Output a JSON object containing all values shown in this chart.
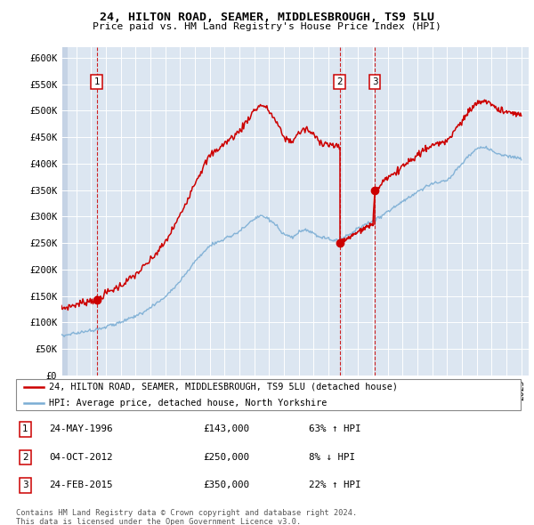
{
  "title1": "24, HILTON ROAD, SEAMER, MIDDLESBROUGH, TS9 5LU",
  "title2": "Price paid vs. HM Land Registry's House Price Index (HPI)",
  "ylim": [
    0,
    620000
  ],
  "yticks": [
    0,
    50000,
    100000,
    150000,
    200000,
    250000,
    300000,
    350000,
    400000,
    450000,
    500000,
    550000,
    600000
  ],
  "ytick_labels": [
    "£0",
    "£50K",
    "£100K",
    "£150K",
    "£200K",
    "£250K",
    "£300K",
    "£350K",
    "£400K",
    "£450K",
    "£500K",
    "£550K",
    "£600K"
  ],
  "xlim_start": 1994.0,
  "xlim_end": 2025.5,
  "hpi_color": "#7aadd4",
  "price_color": "#cc0000",
  "dot_color": "#cc0000",
  "bg_color": "#dce6f1",
  "grid_color": "#ffffff",
  "legend_line1": "24, HILTON ROAD, SEAMER, MIDDLESBROUGH, TS9 5LU (detached house)",
  "legend_line2": "HPI: Average price, detached house, North Yorkshire",
  "transactions": [
    {
      "num": 1,
      "date": "24-MAY-1996",
      "price": 143000,
      "hpi_pct": "63% ↑ HPI",
      "year": 1996.38
    },
    {
      "num": 2,
      "date": "04-OCT-2012",
      "price": 250000,
      "hpi_pct": "8% ↓ HPI",
      "year": 2012.75
    },
    {
      "num": 3,
      "date": "24-FEB-2015",
      "price": 350000,
      "hpi_pct": "22% ↑ HPI",
      "year": 2015.13
    }
  ],
  "footnote1": "Contains HM Land Registry data © Crown copyright and database right 2024.",
  "footnote2": "This data is licensed under the Open Government Licence v3.0."
}
